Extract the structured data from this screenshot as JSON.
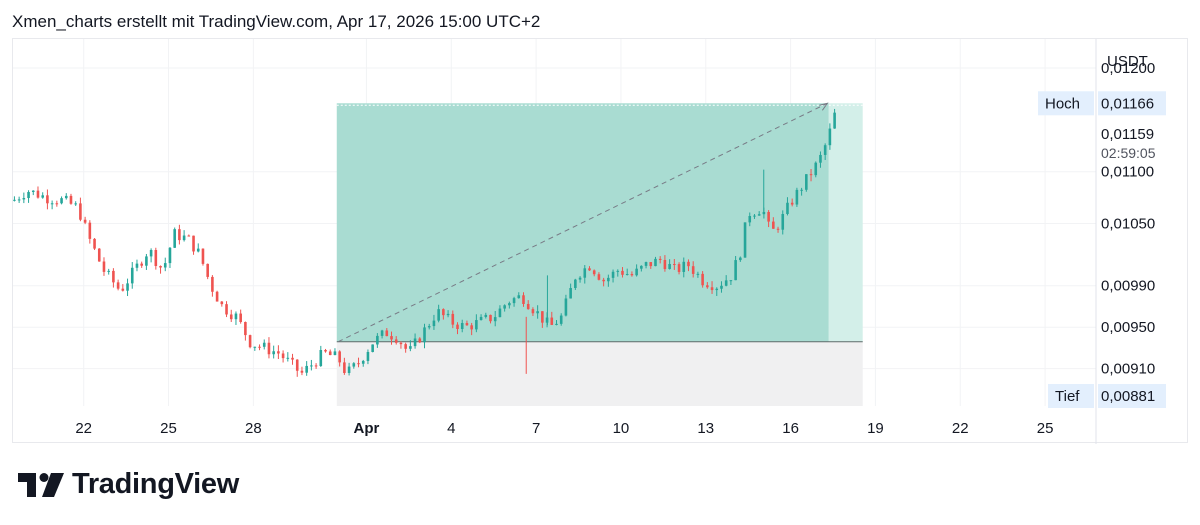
{
  "header": {
    "title": "Xmen_charts erstellt mit TradingView.com, Apr 17, 2026 15:00 UTC+2"
  },
  "brand": {
    "name": "TradingView"
  },
  "colors": {
    "up": "#26a69a",
    "down": "#ef5350",
    "box": "#a9dcd2",
    "box_light": "#d3efe9",
    "gray_box": "#f0f0f1",
    "grid": "#f2f3f5",
    "label_bg": "#e3effd",
    "text": "#131722"
  },
  "chart_data": {
    "type": "candlestick",
    "title": "",
    "currency": "USDT",
    "y_ticks": [
      "0,01200",
      "0,01100",
      "0,01050",
      "0,00990",
      "0,00950",
      "0,00910"
    ],
    "y_tick_values": [
      0.012,
      0.011,
      0.0105,
      0.0099,
      0.0095,
      0.0091
    ],
    "ylim": [
      0.00874,
      0.01228
    ],
    "x_ticks": [
      {
        "label": "22",
        "day": 22
      },
      {
        "label": "25",
        "day": 25
      },
      {
        "label": "28",
        "day": 28
      },
      {
        "label": "Apr",
        "day": 32,
        "bold": true
      },
      {
        "label": "4",
        "day": 35
      },
      {
        "label": "7",
        "day": 38
      },
      {
        "label": "10",
        "day": 41
      },
      {
        "label": "13",
        "day": 44
      },
      {
        "label": "16",
        "day": 47
      },
      {
        "label": "19",
        "day": 50
      },
      {
        "label": "22",
        "day": 53
      },
      {
        "label": "25",
        "day": 56
      }
    ],
    "xlim_days": [
      19.5,
      57.8
    ],
    "high": {
      "label": "Hoch",
      "value": "0,01166",
      "num": 0.01166
    },
    "low": {
      "label": "Tief",
      "value": "0,00881",
      "num": 0.00881
    },
    "last_price": {
      "value": "0,01159",
      "countdown": "02:59:05"
    },
    "price_range_tool": {
      "start_day": 30.95,
      "end_day": 49.55,
      "fill_end_day": 48.35,
      "top": 0.01166,
      "base": 0.00936,
      "bottom": 0.00881
    },
    "trend_line": {
      "from_day": 31.0,
      "from": 0.00936,
      "to_day": 48.3,
      "to": 0.01166
    },
    "waypoints": [
      [
        19.5,
        0.01072
      ],
      [
        20.0,
        0.01082
      ],
      [
        20.7,
        0.01075
      ],
      [
        21.3,
        0.01072
      ],
      [
        21.8,
        0.01065
      ],
      [
        22.2,
        0.01035
      ],
      [
        22.7,
        0.01005
      ],
      [
        23.3,
        0.00985
      ],
      [
        23.8,
        0.01005
      ],
      [
        24.3,
        0.01025
      ],
      [
        24.8,
        0.01005
      ],
      [
        25.2,
        0.0104
      ],
      [
        25.7,
        0.01035
      ],
      [
        26.1,
        0.0102
      ],
      [
        26.5,
        0.0099
      ],
      [
        26.9,
        0.0097
      ],
      [
        27.4,
        0.0096
      ],
      [
        27.9,
        0.00935
      ],
      [
        28.4,
        0.0093
      ],
      [
        28.9,
        0.00925
      ],
      [
        29.3,
        0.00915
      ],
      [
        29.7,
        0.00905
      ],
      [
        30.1,
        0.00915
      ],
      [
        30.5,
        0.00925
      ],
      [
        31.0,
        0.0092
      ],
      [
        31.3,
        0.00905
      ],
      [
        31.7,
        0.00915
      ],
      [
        32.2,
        0.00935
      ],
      [
        32.7,
        0.00945
      ],
      [
        33.1,
        0.0094
      ],
      [
        33.5,
        0.00925
      ],
      [
        34.0,
        0.00945
      ],
      [
        34.5,
        0.00965
      ],
      [
        35.0,
        0.00955
      ],
      [
        35.5,
        0.0095
      ],
      [
        36.0,
        0.00955
      ],
      [
        36.5,
        0.0096
      ],
      [
        37.0,
        0.00975
      ],
      [
        37.5,
        0.0098
      ],
      [
        38.0,
        0.00965
      ],
      [
        38.5,
        0.0095
      ],
      [
        38.9,
        0.0096
      ],
      [
        39.4,
        0.01
      ],
      [
        39.9,
        0.0101
      ],
      [
        40.4,
        0.00995
      ],
      [
        40.9,
        0.01005
      ],
      [
        41.4,
        0.01
      ],
      [
        41.9,
        0.0101
      ],
      [
        42.4,
        0.01015
      ],
      [
        42.9,
        0.01005
      ],
      [
        43.4,
        0.0101
      ],
      [
        43.9,
        0.00995
      ],
      [
        44.4,
        0.0099
      ],
      [
        44.9,
        0.01
      ],
      [
        45.2,
        0.0102
      ],
      [
        45.5,
        0.0106
      ],
      [
        46.0,
        0.01065
      ],
      [
        46.3,
        0.0104
      ],
      [
        46.6,
        0.0105
      ],
      [
        47.0,
        0.0107
      ],
      [
        47.5,
        0.0109
      ],
      [
        48.0,
        0.0111
      ],
      [
        48.3,
        0.0113
      ],
      [
        48.6,
        0.01159
      ]
    ]
  }
}
